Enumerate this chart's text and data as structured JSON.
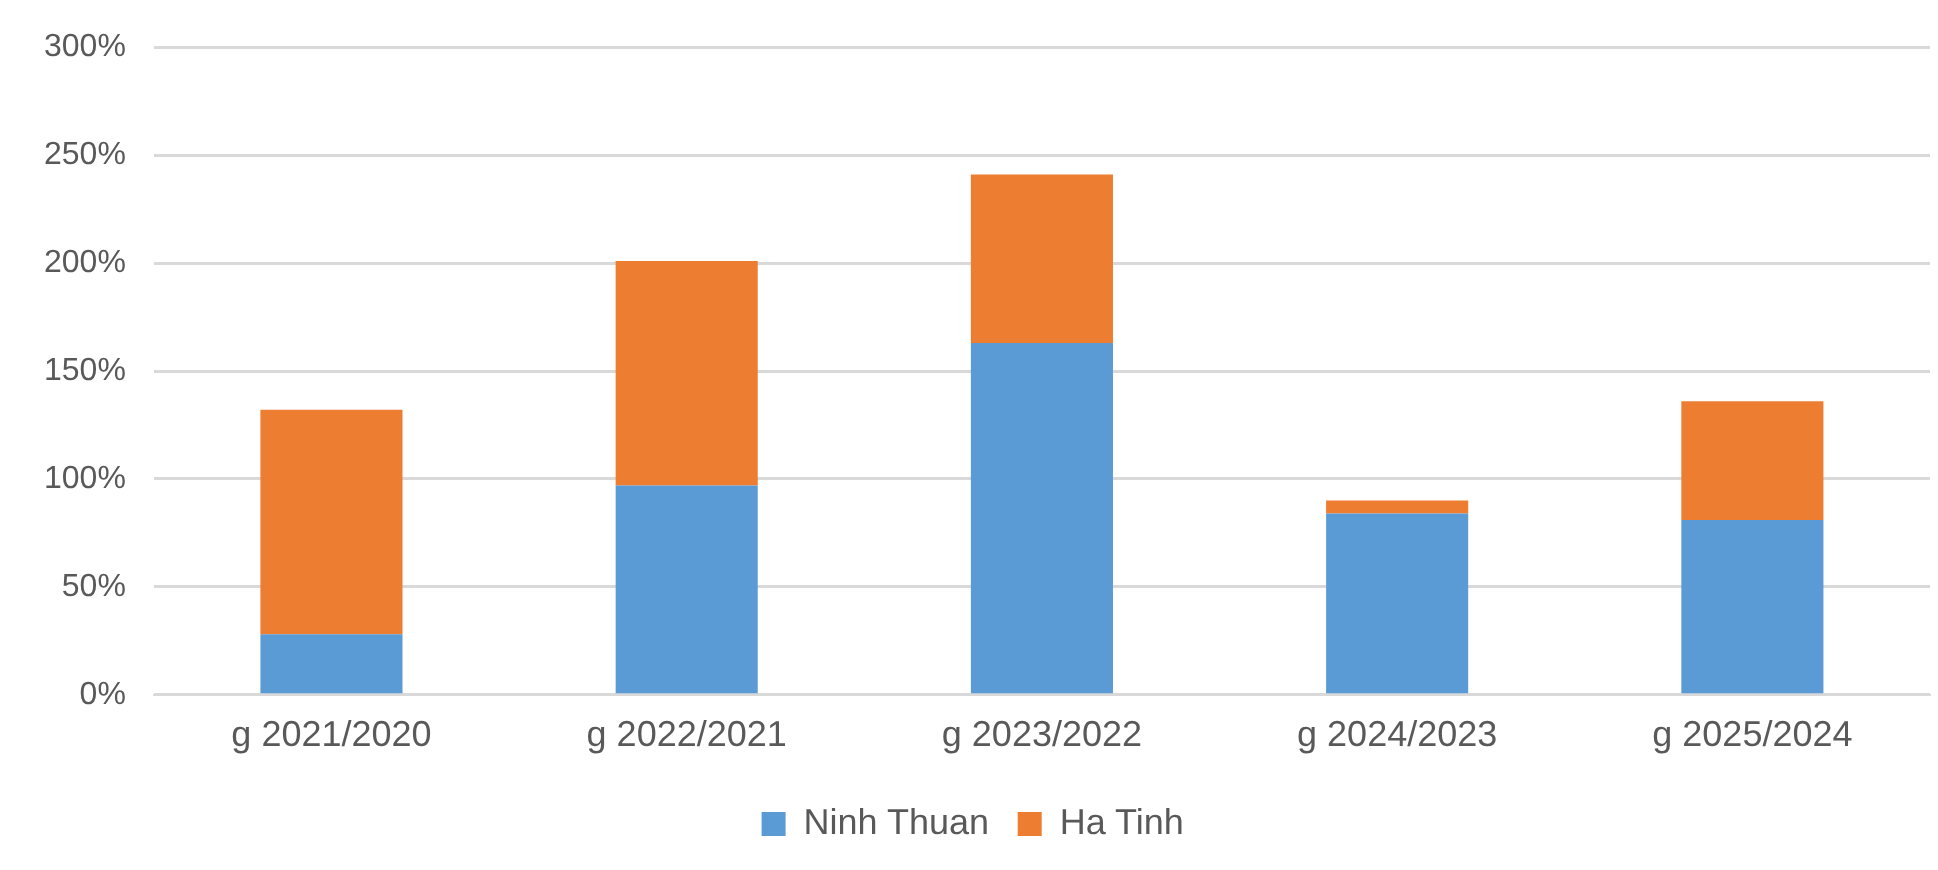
{
  "chart_data": {
    "type": "bar",
    "stacked": true,
    "categories": [
      "g 2021/2020",
      "g 2022/2021",
      "g 2023/2022",
      "g 2024/2023",
      "g 2025/2024"
    ],
    "series": [
      {
        "name": "Ninh Thuan",
        "color": "#5b9bd5",
        "values": [
          28,
          97,
          163,
          84,
          81
        ]
      },
      {
        "name": "Ha Tinh",
        "color": "#ed7d31",
        "values": [
          104,
          104,
          78,
          6,
          55
        ]
      }
    ],
    "ylim": [
      0,
      300
    ],
    "yticks": [
      {
        "value": 0,
        "label": "0%"
      },
      {
        "value": 50,
        "label": "50%"
      },
      {
        "value": 100,
        "label": "100%"
      },
      {
        "value": 150,
        "label": "150%"
      },
      {
        "value": 200,
        "label": "200%"
      },
      {
        "value": 250,
        "label": "250%"
      },
      {
        "value": 300,
        "label": "300%"
      }
    ],
    "grid": "y",
    "legend": "bottom"
  }
}
